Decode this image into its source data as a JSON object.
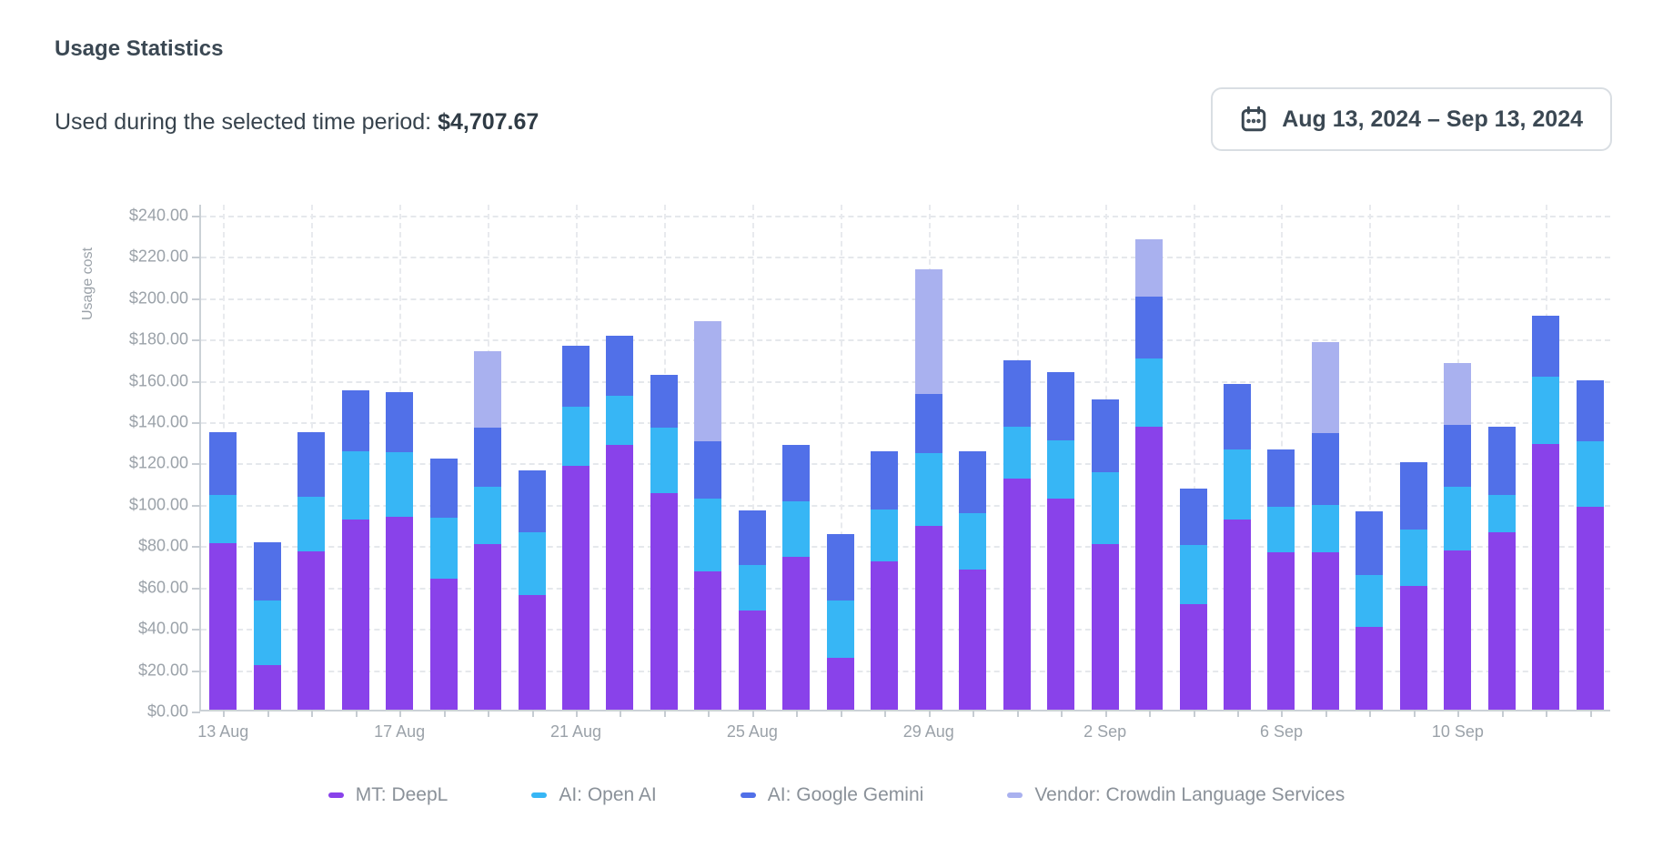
{
  "header": {
    "title": "Usage Statistics",
    "subtitle_label": "Used during the selected time period:",
    "subtitle_value": "$4,707.67",
    "date_range": "Aug 13, 2024 – Sep 13, 2024"
  },
  "colors": {
    "deepl_purple": "#8942EA",
    "openai_cyan": "#37B6F5",
    "gemini_blue": "#5170E8",
    "crowdin_lavender": "#A9B1EF",
    "axis_line": "#CBD1D6",
    "grid_dash": "#E5E8EC",
    "tick_label_gray": "#9BA2A9",
    "legend_text_gray": "#8A9199",
    "heading_dark": "#3B4853"
  },
  "chart_data": {
    "type": "bar",
    "stacked": true,
    "ylabel": "Usage cost",
    "xlabel": "",
    "ylim": [
      0,
      245
    ],
    "ytick_step": 20,
    "y_tick_labels": [
      "$0.00",
      "$20.00",
      "$40.00",
      "$60.00",
      "$80.00",
      "$100.00",
      "$120.00",
      "$140.00",
      "$160.00",
      "$180.00",
      "$200.00",
      "$220.00",
      "$240.00"
    ],
    "grid": "dashed",
    "legend_position": "bottom",
    "categories": [
      "13 Aug",
      "14 Aug",
      "15 Aug",
      "16 Aug",
      "17 Aug",
      "18 Aug",
      "19 Aug",
      "20 Aug",
      "21 Aug",
      "22 Aug",
      "23 Aug",
      "24 Aug",
      "25 Aug",
      "26 Aug",
      "27 Aug",
      "28 Aug",
      "29 Aug",
      "30 Aug",
      "31 Aug",
      "1 Sep",
      "2 Sep",
      "3 Sep",
      "4 Sep",
      "5 Sep",
      "6 Sep",
      "7 Sep",
      "8 Sep",
      "9 Sep",
      "10 Sep",
      "11 Sep",
      "12 Sep",
      "13 Sep"
    ],
    "x_tick_labels": [
      "13 Aug",
      "17 Aug",
      "21 Aug",
      "25 Aug",
      "29 Aug",
      "2 Sep",
      "6 Sep",
      "10 Sep"
    ],
    "x_tick_indices": [
      0,
      4,
      8,
      12,
      16,
      20,
      24,
      28
    ],
    "series": [
      {
        "name": "MT: DeepL",
        "color": "#8942EA",
        "values": [
          80.5,
          21.5,
          76.5,
          92,
          93.5,
          63.5,
          80,
          55.5,
          118,
          128,
          105,
          67,
          48,
          74,
          25,
          72,
          89,
          68,
          112,
          102,
          80,
          137,
          51,
          92,
          76,
          76,
          40,
          60,
          77,
          86,
          128.5,
          98
        ]
      },
      {
        "name": "AI: Open AI",
        "color": "#37B6F5",
        "values": [
          23.5,
          31.5,
          26.5,
          33,
          31,
          29.5,
          28,
          30.5,
          28.5,
          24,
          31.5,
          35,
          22,
          27,
          28,
          25,
          35,
          27,
          25,
          28.5,
          35,
          33,
          28.5,
          34,
          22,
          23,
          25,
          27,
          31,
          18,
          32.5,
          32
        ]
      },
      {
        "name": "AI: Google Gemini",
        "color": "#5170E8",
        "values": [
          30.5,
          28,
          31.5,
          29.5,
          29,
          28.5,
          28.5,
          30,
          29.5,
          29,
          25.5,
          28,
          26.5,
          27,
          32,
          28,
          29,
          30,
          32,
          33,
          35,
          30,
          27.5,
          31.5,
          28,
          35,
          31,
          33,
          30,
          33,
          29.5,
          29.5
        ]
      },
      {
        "name": "Vendor: Crowdin Language Services",
        "color": "#A9B1EF",
        "values": [
          0,
          0,
          0,
          0,
          0,
          0,
          37,
          0,
          0,
          0,
          0,
          58,
          0,
          0,
          0,
          0,
          60,
          0,
          0,
          0,
          0,
          27.5,
          0,
          0,
          0,
          44,
          0,
          0,
          30,
          0,
          0,
          0
        ]
      }
    ]
  }
}
